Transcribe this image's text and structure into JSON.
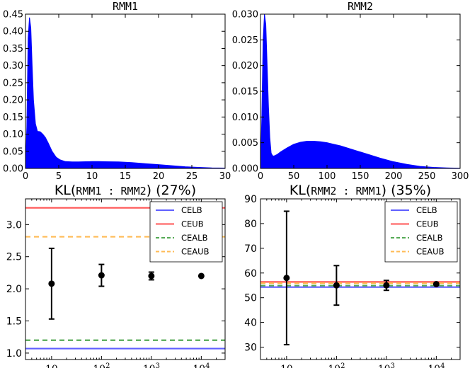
{
  "chart_data": [
    {
      "type": "area",
      "title": "RMM1",
      "xlabel": "",
      "ylabel": "",
      "xlim": [
        0,
        30
      ],
      "ylim": [
        0,
        0.45
      ],
      "x_ticks": [
        "0",
        "5",
        "10",
        "15",
        "20",
        "25",
        "30"
      ],
      "y_ticks": [
        "0.00",
        "0.05",
        "0.10",
        "0.15",
        "0.20",
        "0.25",
        "0.30",
        "0.35",
        "0.40",
        "0.45"
      ],
      "series": [
        {
          "color": "#0000ff",
          "x": [
            0,
            0.2,
            0.4,
            0.6,
            0.8,
            1.0,
            1.2,
            1.5,
            1.8,
            2.2,
            2.6,
            3.0,
            3.4,
            4.0,
            4.6,
            5.2,
            6.0,
            7.0,
            8.0,
            9.0,
            10.0,
            11.0,
            12.0,
            14.0,
            16.0,
            18.0,
            20.0,
            22.0,
            24.0,
            26.0,
            28.0,
            30.0
          ],
          "y": [
            0.0,
            0.12,
            0.38,
            0.44,
            0.41,
            0.3,
            0.2,
            0.13,
            0.108,
            0.107,
            0.1,
            0.09,
            0.075,
            0.05,
            0.033,
            0.025,
            0.02,
            0.019,
            0.019,
            0.0195,
            0.02,
            0.02,
            0.0195,
            0.019,
            0.017,
            0.014,
            0.011,
            0.008,
            0.005,
            0.003,
            0.0015,
            0.001
          ]
        }
      ]
    },
    {
      "type": "area",
      "title": "RMM2",
      "xlabel": "",
      "ylabel": "",
      "xlim": [
        0,
        300
      ],
      "ylim": [
        0,
        0.03
      ],
      "x_ticks": [
        "0",
        "50",
        "100",
        "150",
        "200",
        "250",
        "300"
      ],
      "y_ticks": [
        "0.000",
        "0.005",
        "0.010",
        "0.015",
        "0.020",
        "0.025",
        "0.030"
      ],
      "series": [
        {
          "color": "#0000ff",
          "x": [
            0,
            2,
            4,
            6,
            8,
            10,
            12,
            14,
            16,
            18,
            20,
            25,
            30,
            40,
            50,
            60,
            70,
            80,
            90,
            100,
            110,
            120,
            140,
            160,
            180,
            200,
            220,
            240,
            260,
            280,
            300
          ],
          "y": [
            0.0,
            0.01,
            0.025,
            0.03,
            0.028,
            0.02,
            0.012,
            0.006,
            0.003,
            0.0025,
            0.0024,
            0.0027,
            0.0032,
            0.004,
            0.0047,
            0.0051,
            0.0053,
            0.0053,
            0.0052,
            0.005,
            0.0047,
            0.0044,
            0.0036,
            0.0028,
            0.002,
            0.0013,
            0.0008,
            0.0004,
            0.0002,
            0.0001,
            5e-05
          ]
        }
      ]
    },
    {
      "type": "scatter",
      "title_main": "KL(",
      "title_mono": "RMM1 : RMM2",
      "title_end": ") (27%)",
      "xscale": "log",
      "xlim": [
        3,
        30000
      ],
      "ylim": [
        0.9,
        3.4
      ],
      "x_ticks": [
        {
          "v": 10,
          "base": "10",
          "exp": ""
        },
        {
          "v": 100,
          "base": "10",
          "exp": "2"
        },
        {
          "v": 1000,
          "base": "10",
          "exp": "3"
        },
        {
          "v": 10000,
          "base": "10",
          "exp": "4"
        }
      ],
      "y_ticks": [
        1.0,
        1.5,
        2.0,
        2.5,
        3.0
      ],
      "y_tick_labels": [
        "1.0",
        "1.5",
        "2.0",
        "2.5",
        "3.0"
      ],
      "points": [
        {
          "x": 10,
          "y": 2.08,
          "lo": 1.53,
          "hi": 2.63
        },
        {
          "x": 100,
          "y": 2.21,
          "lo": 2.04,
          "hi": 2.38
        },
        {
          "x": 1000,
          "y": 2.2,
          "lo": 2.14,
          "hi": 2.26
        },
        {
          "x": 10000,
          "y": 2.2,
          "lo": 2.2,
          "hi": 2.2
        }
      ],
      "hlines": [
        {
          "name": "CELB",
          "y": 1.07,
          "color": "#5f5fff",
          "dash": false
        },
        {
          "name": "CEUB",
          "y": 3.26,
          "color": "#ff5555",
          "dash": false
        },
        {
          "name": "CEALB",
          "y": 1.2,
          "color": "#55aa55",
          "dash": true
        },
        {
          "name": "CEAUB",
          "y": 2.81,
          "color": "#ffbb55",
          "dash": true
        }
      ],
      "legend_position": "top-right"
    },
    {
      "type": "scatter",
      "title_main": "KL(",
      "title_mono": "RMM2 : RMM1",
      "title_end": ") (35%)",
      "xscale": "log",
      "xlim": [
        3,
        30000
      ],
      "ylim": [
        25,
        90
      ],
      "x_ticks": [
        {
          "v": 10,
          "base": "10",
          "exp": ""
        },
        {
          "v": 100,
          "base": "10",
          "exp": "2"
        },
        {
          "v": 1000,
          "base": "10",
          "exp": "3"
        },
        {
          "v": 10000,
          "base": "10",
          "exp": "4"
        }
      ],
      "y_ticks": [
        30,
        40,
        50,
        60,
        70,
        80,
        90
      ],
      "y_tick_labels": [
        "30",
        "40",
        "50",
        "60",
        "70",
        "80",
        "90"
      ],
      "points": [
        {
          "x": 10,
          "y": 58,
          "lo": 31,
          "hi": 85
        },
        {
          "x": 100,
          "y": 55,
          "lo": 47,
          "hi": 63
        },
        {
          "x": 1000,
          "y": 55,
          "lo": 53,
          "hi": 57
        },
        {
          "x": 10000,
          "y": 55.5,
          "lo": 55.5,
          "hi": 55.5
        }
      ],
      "hlines": [
        {
          "name": "CELB",
          "y": 54.3,
          "color": "#5f5fff",
          "dash": false
        },
        {
          "name": "CEUB",
          "y": 56.4,
          "color": "#ff5555",
          "dash": false
        },
        {
          "name": "CEALB",
          "y": 54.9,
          "color": "#55aa55",
          "dash": true
        },
        {
          "name": "CEAUB",
          "y": 55.9,
          "color": "#ffbb55",
          "dash": true
        }
      ],
      "legend_position": "top-right"
    }
  ]
}
